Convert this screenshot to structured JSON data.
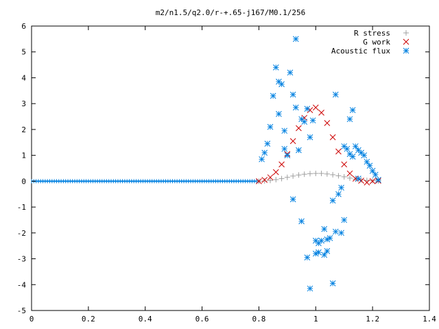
{
  "chart_data": {
    "type": "scatter",
    "title": "m2/n1.5/q2.0/r-+.65-j167/M0.1/256",
    "xlim": [
      0,
      1.4
    ],
    "ylim": [
      -5,
      6
    ],
    "x_ticks": [
      "0",
      "0.2",
      "0.4",
      "0.6",
      "0.8",
      "1",
      "1.2",
      "1.4"
    ],
    "x_tick_values": [
      0,
      0.2,
      0.4,
      0.6,
      0.8,
      1.0,
      1.2,
      1.4
    ],
    "y_ticks": [
      "-5",
      "-4",
      "-3",
      "-2",
      "-1",
      "0",
      "1",
      "2",
      "3",
      "4",
      "5",
      "6"
    ],
    "y_tick_values": [
      -5,
      -4,
      -3,
      -2,
      -1,
      0,
      1,
      2,
      3,
      4,
      5,
      6
    ],
    "legend_position": "top-right",
    "series": [
      {
        "name": "R stress",
        "marker": "plus",
        "color": "#a0a0a0",
        "x": [
          0.8,
          0.82,
          0.84,
          0.86,
          0.88,
          0.9,
          0.92,
          0.94,
          0.96,
          0.98,
          1.0,
          1.02,
          1.04,
          1.06,
          1.08,
          1.1,
          1.12,
          1.14,
          1.16,
          1.18,
          1.2,
          1.22
        ],
        "y": [
          0.0,
          0.01,
          0.03,
          0.06,
          0.1,
          0.15,
          0.2,
          0.24,
          0.27,
          0.29,
          0.3,
          0.3,
          0.28,
          0.25,
          0.21,
          0.17,
          0.12,
          0.08,
          0.05,
          0.03,
          0.02,
          0.01
        ]
      },
      {
        "name": "G work",
        "marker": "cross",
        "color": "#cc0000",
        "x": [
          0.8,
          0.82,
          0.84,
          0.86,
          0.88,
          0.9,
          0.92,
          0.94,
          0.96,
          0.98,
          1.0,
          1.02,
          1.04,
          1.06,
          1.08,
          1.1,
          1.12,
          1.14,
          1.16,
          1.18,
          1.2,
          1.22
        ],
        "y": [
          0.0,
          0.05,
          0.15,
          0.35,
          0.65,
          1.05,
          1.55,
          2.05,
          2.45,
          2.75,
          2.85,
          2.65,
          2.25,
          1.7,
          1.15,
          0.65,
          0.3,
          0.1,
          0.02,
          -0.05,
          0.0,
          0.02
        ]
      },
      {
        "name": "Acoustic flux",
        "marker": "star",
        "color": "#0080e0",
        "x": [
          0.81,
          0.82,
          0.83,
          0.84,
          0.85,
          0.86,
          0.87,
          0.88,
          0.89,
          0.9,
          0.91,
          0.92,
          0.93,
          0.94,
          0.95,
          0.96,
          0.97,
          0.98,
          0.99,
          1.0,
          1.01,
          1.02,
          1.03,
          1.04,
          1.05,
          1.06,
          1.07,
          1.08,
          1.09,
          1.1,
          1.11,
          1.12,
          1.13,
          1.14,
          1.15,
          1.16,
          1.17,
          1.18,
          1.19,
          1.2,
          1.21,
          1.22,
          0.87,
          0.89,
          0.92,
          0.95,
          0.98,
          1.01,
          1.04,
          1.07,
          1.1,
          1.13,
          0.93,
          0.97,
          1.0,
          1.03,
          1.06,
          1.09,
          1.12,
          1.15
        ],
        "y": [
          0.85,
          1.1,
          1.45,
          2.1,
          3.3,
          4.4,
          3.85,
          3.75,
          1.25,
          1.0,
          4.2,
          3.35,
          2.85,
          1.2,
          2.4,
          2.3,
          2.8,
          1.7,
          2.35,
          -2.3,
          -2.75,
          -2.3,
          -1.85,
          -2.25,
          -2.2,
          -3.95,
          -1.95,
          -0.5,
          -2.0,
          -1.5,
          1.25,
          2.4,
          2.75,
          1.35,
          1.2,
          1.1,
          1.0,
          0.75,
          0.6,
          0.4,
          0.25,
          0.05,
          2.6,
          1.95,
          -0.7,
          -1.55,
          -4.15,
          -2.4,
          -2.7,
          3.35,
          1.35,
          0.95,
          5.5,
          -2.95,
          -2.8,
          -2.85,
          -0.75,
          -0.25,
          1.05,
          0.1
        ]
      }
    ]
  }
}
